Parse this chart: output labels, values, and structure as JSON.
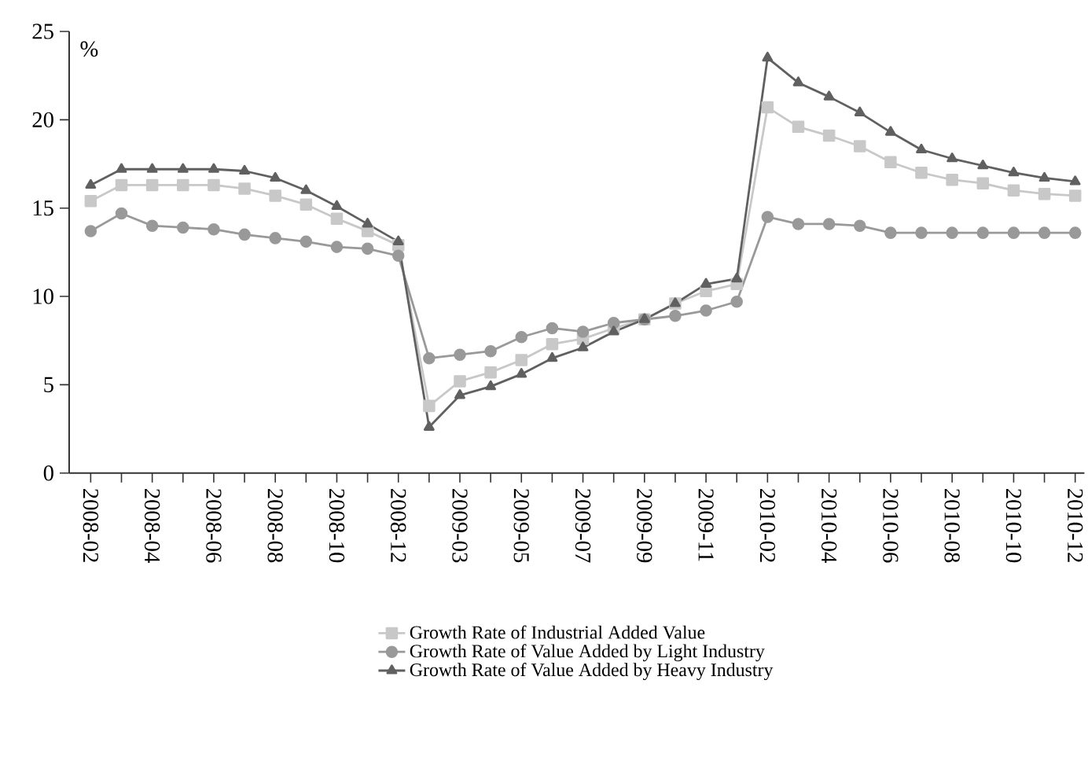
{
  "chart_data": {
    "type": "line",
    "ylabel": "%",
    "categories": [
      "2008-02",
      null,
      "2008-04",
      null,
      "2008-06",
      null,
      "2008-08",
      null,
      "2008-10",
      null,
      "2008-12",
      null,
      "2009-03",
      null,
      "2009-05",
      null,
      "2009-07",
      null,
      "2009-09",
      null,
      "2009-11",
      null,
      "2010-02",
      null,
      "2010-04",
      null,
      "2010-06",
      null,
      "2010-08",
      null,
      "2010-10",
      null,
      "2010-12"
    ],
    "ylim": [
      0,
      25
    ],
    "yticks": [
      0,
      5,
      10,
      15,
      20,
      25
    ],
    "legend": "bottom",
    "grid": false,
    "series": [
      {
        "name": "Growth Rate of Industrial Added Value",
        "color": "#c8c8c8",
        "marker": "square",
        "values": [
          15.4,
          16.3,
          16.3,
          16.3,
          16.3,
          16.1,
          15.7,
          15.2,
          14.4,
          13.7,
          12.9,
          3.8,
          5.2,
          5.7,
          6.4,
          7.3,
          7.6,
          8.2,
          8.7,
          9.6,
          10.3,
          10.7,
          20.7,
          19.6,
          19.1,
          18.5,
          17.6,
          17.0,
          16.6,
          16.4,
          16.0,
          15.8,
          15.7
        ]
      },
      {
        "name": "Growth Rate of Value Added by Light Industry",
        "color": "#999999",
        "marker": "circle",
        "values": [
          13.7,
          14.7,
          14.0,
          13.9,
          13.8,
          13.5,
          13.3,
          13.1,
          12.8,
          12.7,
          12.3,
          6.5,
          6.7,
          6.9,
          7.7,
          8.2,
          8.0,
          8.5,
          8.7,
          8.9,
          9.2,
          9.7,
          14.5,
          14.1,
          14.1,
          14.0,
          13.6,
          13.6,
          13.6,
          13.6,
          13.6,
          13.6,
          13.6
        ]
      },
      {
        "name": "Growth Rate of Value Added by Heavy Industry",
        "color": "#606060",
        "marker": "triangle",
        "values": [
          16.3,
          17.2,
          17.2,
          17.2,
          17.2,
          17.1,
          16.7,
          16.0,
          15.1,
          14.1,
          13.1,
          2.6,
          4.4,
          4.9,
          5.6,
          6.5,
          7.1,
          8.0,
          8.7,
          9.6,
          10.7,
          11.0,
          23.5,
          22.1,
          21.3,
          20.4,
          19.3,
          18.3,
          17.8,
          17.4,
          17.0,
          16.7,
          16.5
        ]
      }
    ]
  }
}
